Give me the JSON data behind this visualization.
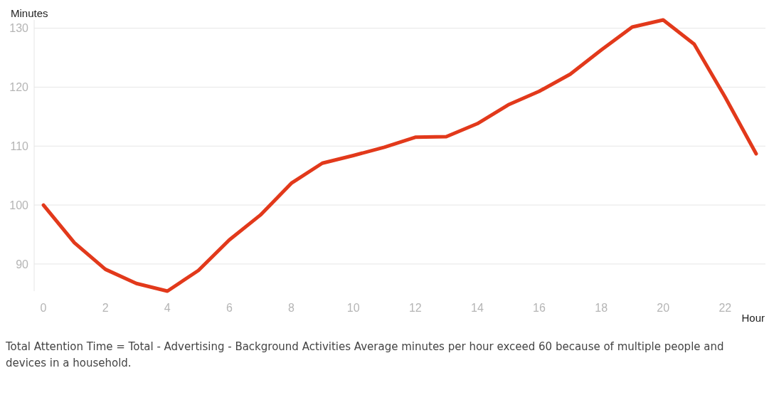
{
  "chart_data": {
    "type": "line",
    "xlabel": "Hour",
    "ylabel": "Minutes",
    "x": [
      0,
      1,
      2,
      3,
      4,
      5,
      6,
      7,
      8,
      9,
      10,
      11,
      12,
      13,
      14,
      15,
      16,
      17,
      18,
      19,
      20,
      21,
      22,
      23
    ],
    "series": [
      {
        "color": "#e2391b",
        "values": [
          100,
          93.6,
          89.1,
          86.7,
          85.4,
          88.9,
          94.1,
          98.3,
          103.7,
          107.1,
          108.4,
          109.8,
          111.5,
          111.6,
          113.8,
          117.0,
          119.3,
          122.2,
          126.3,
          130.2,
          131.4,
          127.3,
          118.3,
          108.7
        ]
      }
    ],
    "xlim": [
      -0.3,
      23.3
    ],
    "ylim": [
      85.4,
      131.4
    ],
    "xticks": [
      0,
      2,
      4,
      6,
      8,
      10,
      12,
      14,
      16,
      18,
      20,
      22
    ],
    "yticks": [
      90,
      100,
      110,
      120,
      130
    ],
    "grid": "y",
    "annotations": [
      "Total Attention Time = Total - Advertising - Background Activities Average minutes per hour exceed 60 because of multiple people and devices in a household."
    ]
  }
}
